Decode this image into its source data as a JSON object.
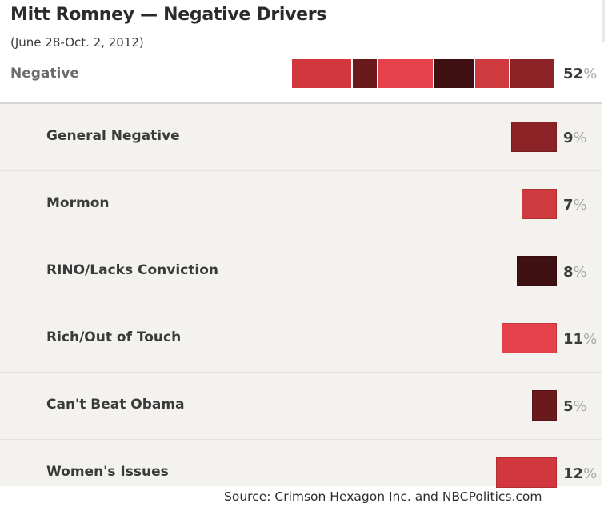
{
  "header": {
    "title": "Mitt Romney — Negative Drivers",
    "subtitle": "(June 28-Oct. 2, 2012)"
  },
  "total": {
    "label": "Negative",
    "value": "52",
    "pct_symbol": "%"
  },
  "source": "Source: Crimson Hexagon Inc. and NBCPolitics.com",
  "chart_data": {
    "type": "bar",
    "orientation": "horizontal",
    "title": "Mitt Romney — Negative Drivers",
    "subtitle": "(June 28-Oct. 2, 2012)",
    "unit": "%",
    "total": {
      "name": "Negative",
      "value": 52
    },
    "categories": [
      "General Negative",
      "Mormon",
      "RINO/Lacks Conviction",
      "Rich/Out of Touch",
      "Can't Beat Obama",
      "Women's Issues"
    ],
    "values": [
      9,
      7,
      8,
      11,
      5,
      12
    ],
    "colors": [
      "#8a2226",
      "#cf3a3e",
      "#3e1012",
      "#e5414a",
      "#6a1a1c",
      "#d2373d"
    ],
    "stack_order": [
      "Women's Issues",
      "Can't Beat Obama",
      "Rich/Out of Touch",
      "RINO/Lacks Conviction",
      "Mormon",
      "General Negative"
    ],
    "source": "Source: Crimson Hexagon Inc. and NBCPolitics.com"
  }
}
